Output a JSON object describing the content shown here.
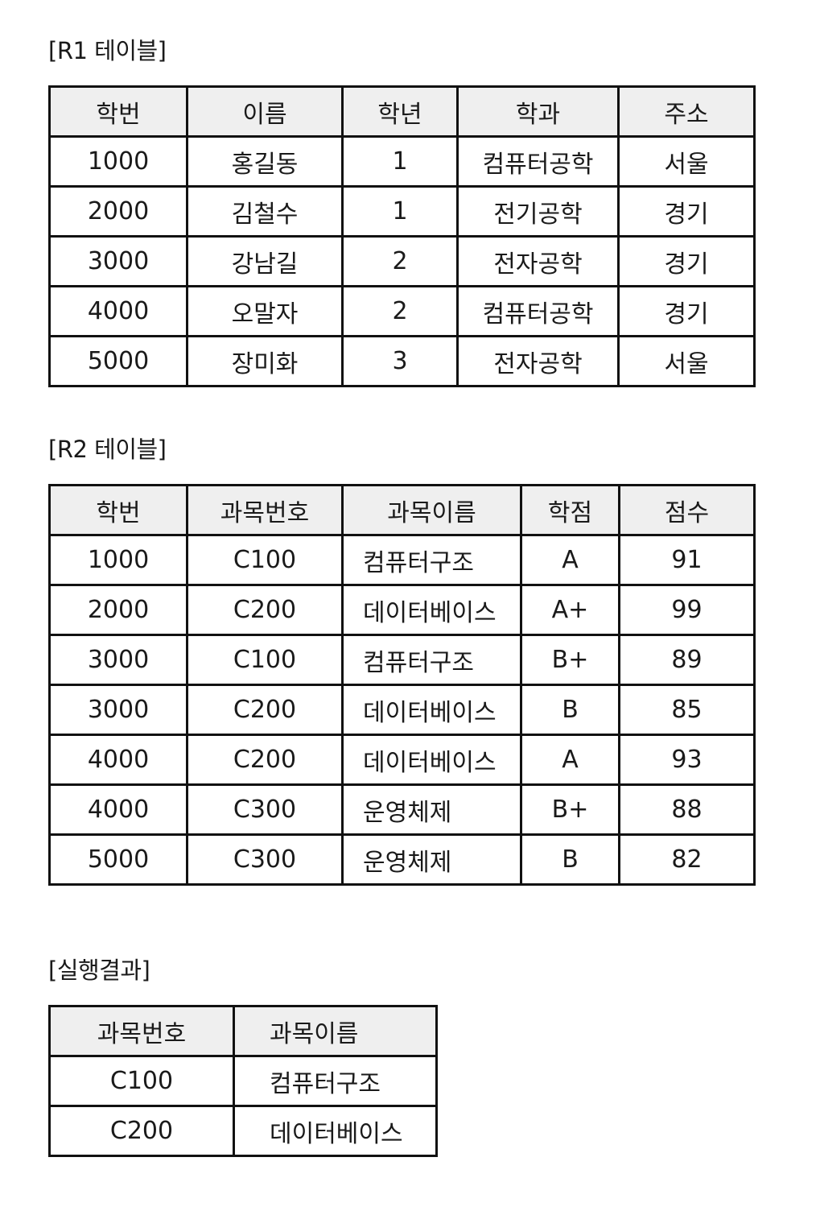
{
  "r1": {
    "caption": "[R1 테이블]",
    "headers": [
      "학번",
      "이름",
      "학년",
      "학과",
      "주소"
    ],
    "rows": [
      [
        "1000",
        "홍길동",
        "1",
        "컴퓨터공학",
        "서울"
      ],
      [
        "2000",
        "김철수",
        "1",
        "전기공학",
        "경기"
      ],
      [
        "3000",
        "강남길",
        "2",
        "전자공학",
        "경기"
      ],
      [
        "4000",
        "오말자",
        "2",
        "컴퓨터공학",
        "경기"
      ],
      [
        "5000",
        "장미화",
        "3",
        "전자공학",
        "서울"
      ]
    ]
  },
  "r2": {
    "caption": "[R2 테이블]",
    "headers": [
      "학번",
      "과목번호",
      "과목이름",
      "학점",
      "점수"
    ],
    "rows": [
      [
        "1000",
        "C100",
        "컴퓨터구조",
        "A",
        "91"
      ],
      [
        "2000",
        "C200",
        "데이터베이스",
        "A+",
        "99"
      ],
      [
        "3000",
        "C100",
        "컴퓨터구조",
        "B+",
        "89"
      ],
      [
        "3000",
        "C200",
        "데이터베이스",
        "B",
        "85"
      ],
      [
        "4000",
        "C200",
        "데이터베이스",
        "A",
        "93"
      ],
      [
        "4000",
        "C300",
        "운영체제",
        "B+",
        "88"
      ],
      [
        "5000",
        "C300",
        "운영체제",
        "B",
        "82"
      ]
    ]
  },
  "result": {
    "caption": "[실행결과]",
    "headers": [
      "과목번호",
      "과목이름"
    ],
    "rows": [
      [
        "C100",
        "컴퓨터구조"
      ],
      [
        "C200",
        "데이터베이스"
      ]
    ]
  }
}
